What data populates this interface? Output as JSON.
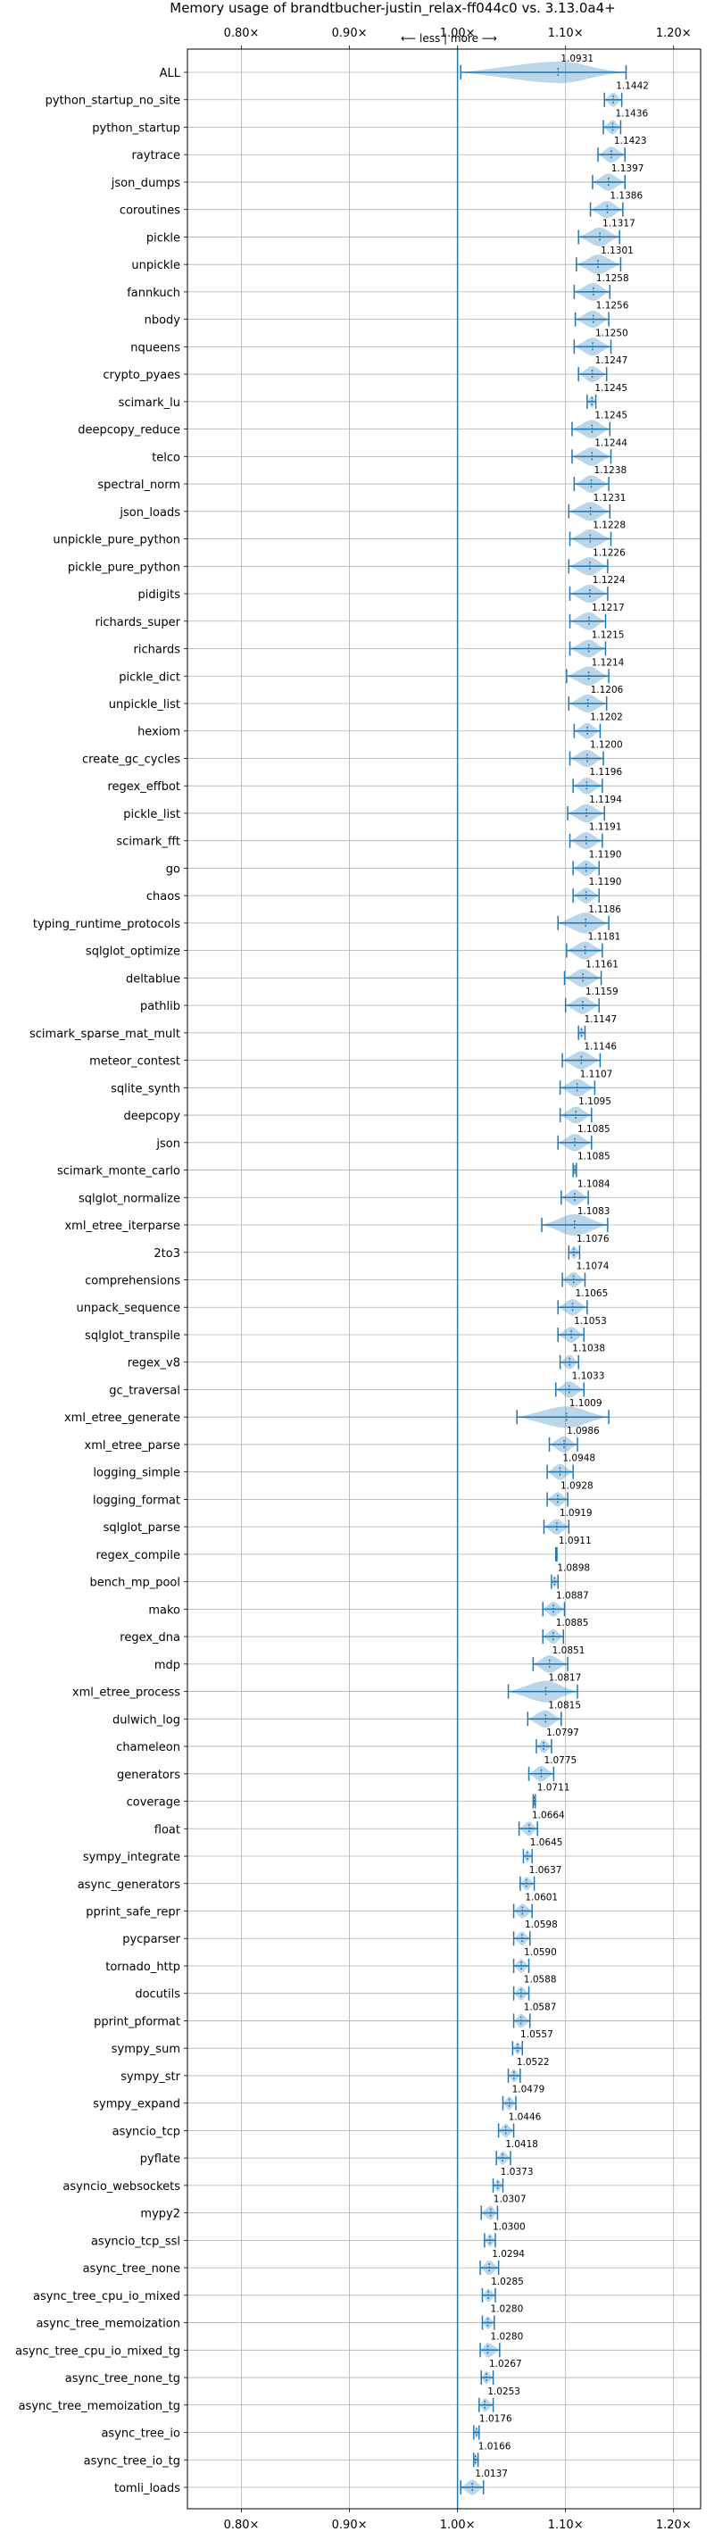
{
  "chart_data": {
    "type": "violin",
    "title": "Memory usage of brandtbucher-justin_relax-ff044c0 vs. 3.13.0a4+",
    "xlim": [
      0.75,
      1.225
    ],
    "xticks": [
      0.8,
      0.9,
      1.0,
      1.1,
      1.2
    ],
    "xtick_labels": [
      "0.80×",
      "0.90×",
      "1.00×",
      "1.10×",
      "1.20×"
    ],
    "less_more_label": "⟵ less | more ⟶",
    "grid": true,
    "reference_line": 1.0,
    "categories": [
      "ALL",
      "python_startup_no_site",
      "python_startup",
      "raytrace",
      "json_dumps",
      "coroutines",
      "pickle",
      "unpickle",
      "fannkuch",
      "nbody",
      "nqueens",
      "crypto_pyaes",
      "scimark_lu",
      "deepcopy_reduce",
      "telco",
      "spectral_norm",
      "json_loads",
      "unpickle_pure_python",
      "pickle_pure_python",
      "pidigits",
      "richards_super",
      "richards",
      "pickle_dict",
      "unpickle_list",
      "hexiom",
      "create_gc_cycles",
      "regex_effbot",
      "pickle_list",
      "scimark_fft",
      "go",
      "chaos",
      "typing_runtime_protocols",
      "sqlglot_optimize",
      "deltablue",
      "pathlib",
      "scimark_sparse_mat_mult",
      "meteor_contest",
      "sqlite_synth",
      "deepcopy",
      "json",
      "scimark_monte_carlo",
      "sqlglot_normalize",
      "xml_etree_iterparse",
      "2to3",
      "comprehensions",
      "unpack_sequence",
      "sqlglot_transpile",
      "regex_v8",
      "gc_traversal",
      "xml_etree_generate",
      "xml_etree_parse",
      "logging_simple",
      "logging_format",
      "sqlglot_parse",
      "regex_compile",
      "bench_mp_pool",
      "mako",
      "regex_dna",
      "mdp",
      "xml_etree_process",
      "dulwich_log",
      "chameleon",
      "generators",
      "coverage",
      "float",
      "sympy_integrate",
      "async_generators",
      "pprint_safe_repr",
      "pycparser",
      "tornado_http",
      "docutils",
      "pprint_pformat",
      "sympy_sum",
      "sympy_str",
      "sympy_expand",
      "asyncio_tcp",
      "pyflate",
      "asyncio_websockets",
      "mypy2",
      "asyncio_tcp_ssl",
      "async_tree_none",
      "async_tree_cpu_io_mixed",
      "async_tree_memoization",
      "async_tree_cpu_io_mixed_tg",
      "async_tree_none_tg",
      "async_tree_memoization_tg",
      "async_tree_io",
      "async_tree_io_tg",
      "tomli_loads"
    ],
    "values": [
      1.0931,
      1.1442,
      1.1436,
      1.1423,
      1.1397,
      1.1386,
      1.1317,
      1.1301,
      1.1258,
      1.1256,
      1.125,
      1.1247,
      1.1245,
      1.1245,
      1.1244,
      1.1238,
      1.1231,
      1.1228,
      1.1226,
      1.1224,
      1.1217,
      1.1215,
      1.1214,
      1.1206,
      1.1202,
      1.12,
      1.1196,
      1.1194,
      1.1191,
      1.119,
      1.119,
      1.1186,
      1.1181,
      1.1161,
      1.1159,
      1.1147,
      1.1146,
      1.1107,
      1.1095,
      1.1085,
      1.1085,
      1.1084,
      1.1083,
      1.1076,
      1.1074,
      1.1065,
      1.1053,
      1.1038,
      1.1033,
      1.1009,
      1.0986,
      1.0948,
      1.0928,
      1.0919,
      1.0911,
      1.0898,
      1.0887,
      1.0885,
      1.0851,
      1.0817,
      1.0815,
      1.0797,
      1.0775,
      1.0711,
      1.0664,
      1.0645,
      1.0637,
      1.0601,
      1.0598,
      1.059,
      1.0588,
      1.0587,
      1.0557,
      1.0522,
      1.0479,
      1.0446,
      1.0418,
      1.0373,
      1.0307,
      1.03,
      1.0294,
      1.0285,
      1.028,
      1.028,
      1.0267,
      1.0253,
      1.0176,
      1.0166,
      1.0137
    ],
    "value_labels": [
      "1.0931",
      "1.1442",
      "1.1436",
      "1.1423",
      "1.1397",
      "1.1386",
      "1.1317",
      "1.1301",
      "1.1258",
      "1.1256",
      "1.1250",
      "1.1247",
      "1.1245",
      "1.1245",
      "1.1244",
      "1.1238",
      "1.1231",
      "1.1228",
      "1.1226",
      "1.1224",
      "1.1217",
      "1.1215",
      "1.1214",
      "1.1206",
      "1.1202",
      "1.1200",
      "1.1196",
      "1.1194",
      "1.1191",
      "1.1190",
      "1.1190",
      "1.1186",
      "1.1181",
      "1.1161",
      "1.1159",
      "1.1147",
      "1.1146",
      "1.1107",
      "1.1095",
      "1.1085",
      "1.1085",
      "1.1084",
      "1.1083",
      "1.1076",
      "1.1074",
      "1.1065",
      "1.1053",
      "1.1038",
      "1.1033",
      "1.1009",
      "1.0986",
      "1.0948",
      "1.0928",
      "1.0919",
      "1.0911",
      "1.0898",
      "1.0887",
      "1.0885",
      "1.0851",
      "1.0817",
      "1.0815",
      "1.0797",
      "1.0775",
      "1.0711",
      "1.0664",
      "1.0645",
      "1.0637",
      "1.0601",
      "1.0598",
      "1.0590",
      "1.0588",
      "1.0587",
      "1.0557",
      "1.0522",
      "1.0479",
      "1.0446",
      "1.0418",
      "1.0373",
      "1.0307",
      "1.0300",
      "1.0294",
      "1.0285",
      "1.0280",
      "1.0280",
      "1.0267",
      "1.0253",
      "1.0176",
      "1.0166",
      "1.0137"
    ],
    "ranges": [
      [
        1.003,
        1.156
      ],
      [
        1.136,
        1.152
      ],
      [
        1.135,
        1.151
      ],
      [
        1.13,
        1.155
      ],
      [
        1.125,
        1.155
      ],
      [
        1.123,
        1.153
      ],
      [
        1.112,
        1.15
      ],
      [
        1.11,
        1.151
      ],
      [
        1.108,
        1.141
      ],
      [
        1.109,
        1.14
      ],
      [
        1.108,
        1.142
      ],
      [
        1.112,
        1.138
      ],
      [
        1.12,
        1.128
      ],
      [
        1.106,
        1.141
      ],
      [
        1.106,
        1.142
      ],
      [
        1.108,
        1.14
      ],
      [
        1.103,
        1.141
      ],
      [
        1.104,
        1.142
      ],
      [
        1.103,
        1.139
      ],
      [
        1.104,
        1.139
      ],
      [
        1.104,
        1.137
      ],
      [
        1.104,
        1.137
      ],
      [
        1.101,
        1.14
      ],
      [
        1.103,
        1.138
      ],
      [
        1.108,
        1.132
      ],
      [
        1.104,
        1.135
      ],
      [
        1.107,
        1.134
      ],
      [
        1.102,
        1.136
      ],
      [
        1.104,
        1.134
      ],
      [
        1.107,
        1.131
      ],
      [
        1.107,
        1.131
      ],
      [
        1.093,
        1.14
      ],
      [
        1.101,
        1.134
      ],
      [
        1.099,
        1.133
      ],
      [
        1.1,
        1.131
      ],
      [
        1.112,
        1.118
      ],
      [
        1.097,
        1.132
      ],
      [
        1.095,
        1.127
      ],
      [
        1.095,
        1.124
      ],
      [
        1.093,
        1.124
      ],
      [
        1.107,
        1.11
      ],
      [
        1.096,
        1.121
      ],
      [
        1.078,
        1.139
      ],
      [
        1.103,
        1.113
      ],
      [
        1.097,
        1.118
      ],
      [
        1.093,
        1.12
      ],
      [
        1.093,
        1.117
      ],
      [
        1.095,
        1.112
      ],
      [
        1.091,
        1.117
      ],
      [
        1.055,
        1.14
      ],
      [
        1.085,
        1.111
      ],
      [
        1.083,
        1.107
      ],
      [
        1.083,
        1.102
      ],
      [
        1.08,
        1.103
      ],
      [
        1.091,
        1.092
      ],
      [
        1.087,
        1.093
      ],
      [
        1.079,
        1.099
      ],
      [
        1.079,
        1.098
      ],
      [
        1.07,
        1.102
      ],
      [
        1.047,
        1.111
      ],
      [
        1.065,
        1.096
      ],
      [
        1.073,
        1.087
      ],
      [
        1.066,
        1.089
      ],
      [
        1.07,
        1.072
      ],
      [
        1.057,
        1.074
      ],
      [
        1.061,
        1.069
      ],
      [
        1.058,
        1.071
      ],
      [
        1.052,
        1.069
      ],
      [
        1.052,
        1.067
      ],
      [
        1.052,
        1.066
      ],
      [
        1.052,
        1.066
      ],
      [
        1.052,
        1.067
      ],
      [
        1.051,
        1.06
      ],
      [
        1.047,
        1.058
      ],
      [
        1.042,
        1.054
      ],
      [
        1.038,
        1.052
      ],
      [
        1.036,
        1.049
      ],
      [
        1.033,
        1.042
      ],
      [
        1.022,
        1.037
      ],
      [
        1.025,
        1.035
      ],
      [
        1.021,
        1.038
      ],
      [
        1.023,
        1.035
      ],
      [
        1.023,
        1.034
      ],
      [
        1.021,
        1.039
      ],
      [
        1.022,
        1.033
      ],
      [
        1.02,
        1.033
      ],
      [
        1.015,
        1.02
      ],
      [
        1.015,
        1.019
      ],
      [
        1.003,
        1.024
      ]
    ]
  }
}
